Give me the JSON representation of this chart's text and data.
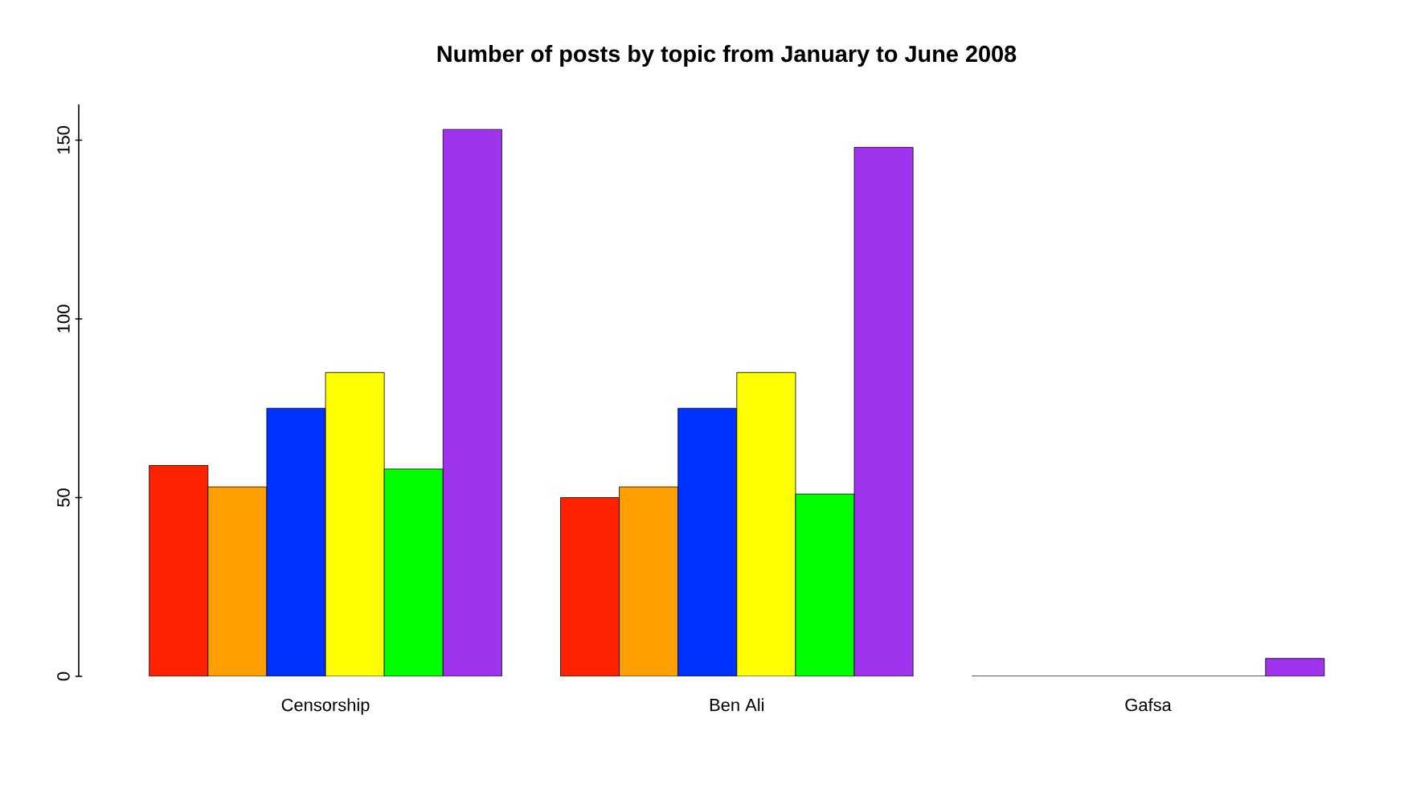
{
  "chart_data": {
    "type": "bar",
    "title": "Number of posts by topic from January to June 2008",
    "categories": [
      "Censorship",
      "Ben Ali",
      "Gafsa"
    ],
    "series": [
      {
        "color": "#ff2200",
        "values": [
          59,
          50,
          0
        ]
      },
      {
        "color": "#ff9f00",
        "values": [
          53,
          53,
          0
        ]
      },
      {
        "color": "#0033ff",
        "values": [
          75,
          75,
          0
        ]
      },
      {
        "color": "#ffff00",
        "values": [
          85,
          85,
          0
        ]
      },
      {
        "color": "#00ff00",
        "values": [
          58,
          51,
          0
        ]
      },
      {
        "color": "#a033ee",
        "values": [
          153,
          148,
          5
        ]
      }
    ],
    "ylim": [
      0,
      160
    ],
    "yticks": [
      0,
      50,
      100,
      150
    ]
  }
}
